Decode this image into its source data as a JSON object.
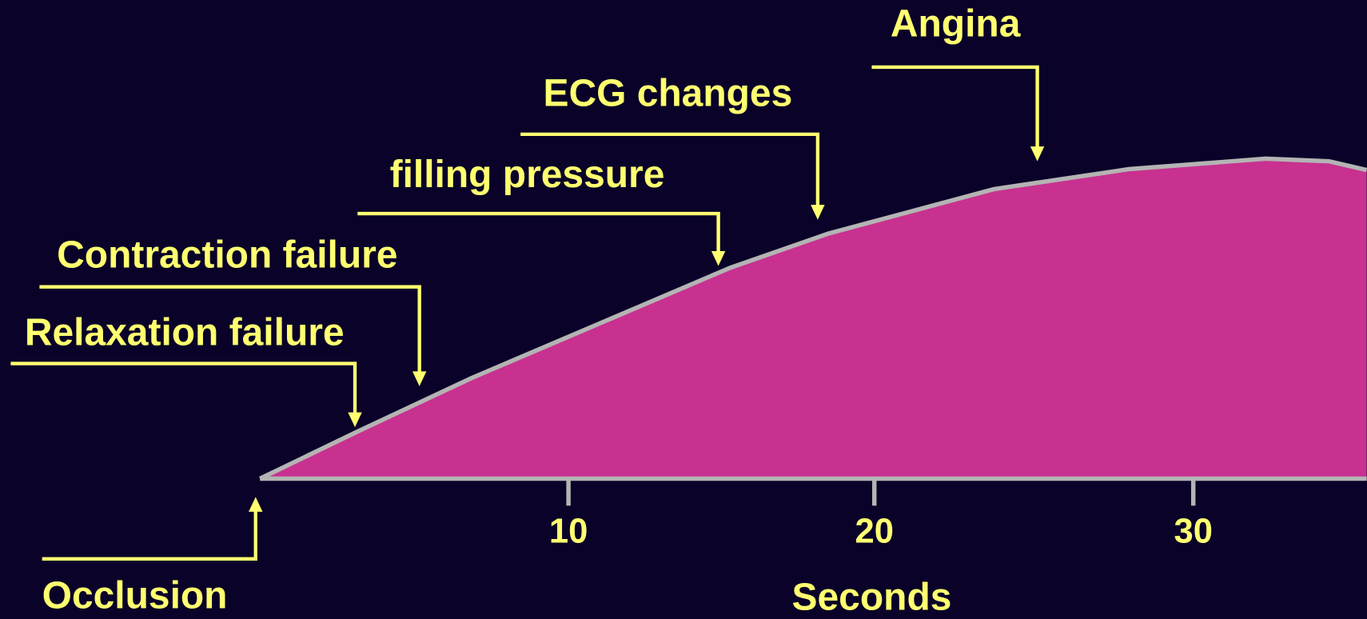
{
  "annotations": [
    "Angina",
    "ECG changes",
    "filling pressure",
    "Contraction failure",
    "Relaxation failure",
    "Occlusion"
  ],
  "axis": {
    "ticks": [
      "10",
      "20",
      "30"
    ],
    "title": "Seconds"
  }
}
